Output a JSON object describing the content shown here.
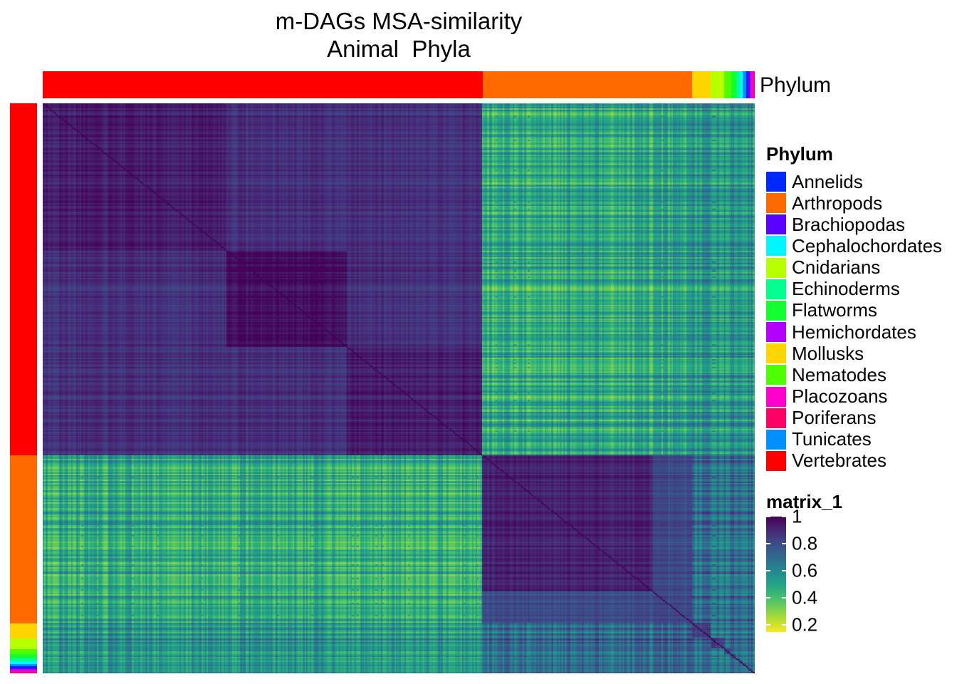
{
  "title": {
    "line1": "m-DAGs MSA-similarity",
    "line2": "Animal  Phyla"
  },
  "annotation_label": "Phylum",
  "legend": {
    "phylum_title": "Phylum",
    "phylum_items": [
      {
        "label": "Annelids",
        "color": "#0029FF"
      },
      {
        "label": "Arthropods",
        "color": "#FF6A00"
      },
      {
        "label": "Brachiopodas",
        "color": "#5A00FF"
      },
      {
        "label": "Cephalochordates",
        "color": "#00F7FF"
      },
      {
        "label": "Cnidarians",
        "color": "#B8FF00"
      },
      {
        "label": "Echinoderms",
        "color": "#00FF8C"
      },
      {
        "label": "Flatworms",
        "color": "#14FF2E"
      },
      {
        "label": "Hemichordates",
        "color": "#B400FF"
      },
      {
        "label": "Mollusks",
        "color": "#FFD500"
      },
      {
        "label": "Nematodes",
        "color": "#4DFF00"
      },
      {
        "label": "Placozoans",
        "color": "#FF00CC"
      },
      {
        "label": "Poriferans",
        "color": "#FF0066"
      },
      {
        "label": "Tunicates",
        "color": "#0090FF"
      },
      {
        "label": "Vertebrates",
        "color": "#FF0000"
      }
    ],
    "matrix_title": "matrix_1",
    "colorbar_ticks": [
      "1",
      "0.8",
      "0.6",
      "0.4",
      "0.2"
    ]
  },
  "chart_data": {
    "type": "heatmap",
    "title": "m-DAGs MSA-similarity Animal  Phyla",
    "value_range": [
      0.15,
      1.0
    ],
    "colorbar_tick_values": [
      1.0,
      0.8,
      0.6,
      0.4,
      0.2
    ],
    "colormap": "viridis (reversed: 1 = dark purple, 0.2 = yellow)",
    "annotation": "Phylum",
    "group_order": [
      "Vertebrates",
      "Arthropods",
      "Mollusks",
      "Cnidarians",
      "Nematodes",
      "Flatworms",
      "Echinoderms",
      "Cephalochordates",
      "Tunicates",
      "Annelids",
      "Brachiopodas",
      "Hemichordates",
      "Placozoans",
      "Poriferans"
    ],
    "group_fractions": [
      0.618,
      0.295,
      0.026,
      0.018,
      0.01,
      0.007,
      0.005,
      0.004,
      0.004,
      0.003,
      0.003,
      0.003,
      0.002,
      0.002
    ],
    "vertebrate_subclusters_fractions": [
      0.26,
      0.17,
      0.19
    ],
    "arthropod_subclusters_fractions": [
      0.24,
      0.055
    ],
    "block_similarity": [
      {
        "rows": "Vertebrates",
        "cols": "Vertebrates",
        "mean": 0.92
      },
      {
        "rows": "Vertebrates",
        "cols": "Arthropods",
        "mean": 0.5
      },
      {
        "rows": "Arthropods",
        "cols": "Arthropods",
        "mean": 0.88
      },
      {
        "rows": "Arthropods",
        "cols": "Others",
        "mean": 0.7
      },
      {
        "rows": "Others",
        "cols": "Others",
        "mean": 0.75
      }
    ]
  }
}
